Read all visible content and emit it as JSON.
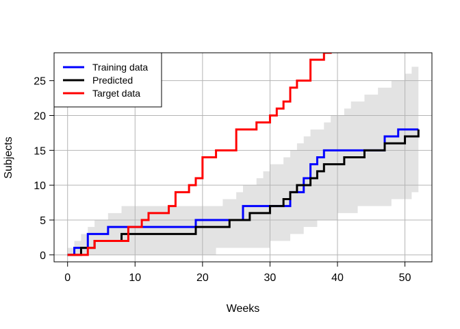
{
  "chart_data": {
    "type": "line",
    "title": "",
    "xlabel": "Weeks",
    "ylabel": "Subjects",
    "xlim": [
      -2,
      54
    ],
    "ylim": [
      -1,
      29
    ],
    "xticks": [
      0,
      10,
      20,
      30,
      40,
      50
    ],
    "yticks": [
      0,
      5,
      10,
      15,
      20,
      25
    ],
    "grid": true,
    "legend_position": "top-left",
    "band": {
      "label": "",
      "color": "#e3e3e3",
      "x": [
        0,
        1,
        2,
        3,
        4,
        5,
        6,
        7,
        8,
        9,
        10,
        11,
        12,
        13,
        14,
        15,
        16,
        17,
        18,
        19,
        20,
        21,
        22,
        23,
        24,
        25,
        26,
        27,
        28,
        29,
        30,
        31,
        32,
        33,
        34,
        35,
        36,
        37,
        38,
        39,
        40,
        41,
        42,
        43,
        44,
        45,
        46,
        47,
        48,
        49,
        50,
        51,
        52
      ],
      "lower": [
        0,
        0,
        0,
        0,
        0,
        0,
        0,
        0,
        0,
        0,
        0,
        0,
        0,
        0,
        0,
        0,
        0,
        0,
        0,
        0,
        0,
        0,
        1,
        1,
        1,
        1,
        1,
        1,
        1,
        1,
        2,
        2,
        2,
        3,
        3,
        4,
        4,
        5,
        5,
        5,
        6,
        6,
        6,
        7,
        7,
        7,
        7,
        7,
        8,
        8,
        8,
        9,
        9
      ],
      "upper": [
        1,
        2,
        3,
        4,
        5,
        5,
        6,
        6,
        7,
        7,
        7,
        7,
        7,
        7,
        7,
        7,
        7,
        7,
        7,
        7,
        7,
        7,
        7,
        8,
        8,
        9,
        10,
        10,
        11,
        12,
        13,
        13,
        14,
        15,
        16,
        17,
        18,
        18,
        19,
        20,
        20,
        21,
        22,
        22,
        23,
        23,
        24,
        24,
        25,
        25,
        26,
        27,
        27
      ]
    },
    "series": [
      {
        "name": "Training data",
        "color": "#0000ff",
        "x": [
          0,
          1,
          2,
          3,
          4,
          5,
          6,
          7,
          8,
          9,
          10,
          11,
          12,
          13,
          14,
          15,
          16,
          17,
          18,
          19,
          20,
          21,
          22,
          23,
          24,
          25,
          26,
          27,
          28,
          29,
          30,
          31,
          32,
          33,
          34,
          35,
          36,
          37,
          38,
          39,
          40,
          41,
          42,
          43,
          44,
          45,
          46,
          47,
          48,
          49,
          50,
          51,
          52
        ],
        "y": [
          0,
          1,
          1,
          3,
          3,
          3,
          4,
          4,
          4,
          4,
          4,
          4,
          4,
          4,
          4,
          4,
          4,
          4,
          4,
          5,
          5,
          5,
          5,
          5,
          5,
          5,
          7,
          7,
          7,
          7,
          7,
          7,
          7,
          9,
          9,
          11,
          13,
          14,
          15,
          15,
          15,
          15,
          15,
          15,
          15,
          15,
          15,
          17,
          17,
          18,
          18,
          18,
          18
        ]
      },
      {
        "name": "Predicted",
        "color": "#000000",
        "x": [
          0,
          1,
          2,
          3,
          4,
          5,
          6,
          7,
          8,
          9,
          10,
          11,
          12,
          13,
          14,
          15,
          16,
          17,
          18,
          19,
          20,
          21,
          22,
          23,
          24,
          25,
          26,
          27,
          28,
          29,
          30,
          31,
          32,
          33,
          34,
          35,
          36,
          37,
          38,
          39,
          40,
          41,
          42,
          43,
          44,
          45,
          46,
          47,
          48,
          49,
          50,
          51,
          52
        ],
        "y": [
          0,
          0,
          1,
          1,
          2,
          2,
          2,
          2,
          3,
          3,
          3,
          3,
          3,
          3,
          3,
          3,
          3,
          3,
          3,
          4,
          4,
          4,
          4,
          4,
          5,
          5,
          5,
          6,
          6,
          6,
          7,
          7,
          8,
          9,
          10,
          10,
          11,
          12,
          13,
          13,
          13,
          14,
          14,
          14,
          15,
          15,
          15,
          16,
          16,
          16,
          17,
          17,
          18
        ]
      },
      {
        "name": "Target data",
        "color": "#ff0000",
        "x": [
          0,
          1,
          2,
          3,
          4,
          5,
          6,
          7,
          8,
          9,
          10,
          11,
          12,
          13,
          14,
          15,
          16,
          17,
          18,
          19,
          20,
          21,
          22,
          23,
          24,
          25,
          26,
          27,
          28,
          29,
          30,
          31,
          32,
          33,
          34,
          35,
          36,
          37,
          38,
          39
        ],
        "y": [
          0,
          0,
          0,
          1,
          2,
          2,
          2,
          2,
          2,
          4,
          4,
          5,
          6,
          6,
          6,
          7,
          9,
          9,
          10,
          11,
          14,
          14,
          15,
          15,
          15,
          18,
          18,
          18,
          19,
          19,
          20,
          21,
          22,
          24,
          25,
          25,
          28,
          28,
          29,
          30
        ]
      }
    ]
  }
}
